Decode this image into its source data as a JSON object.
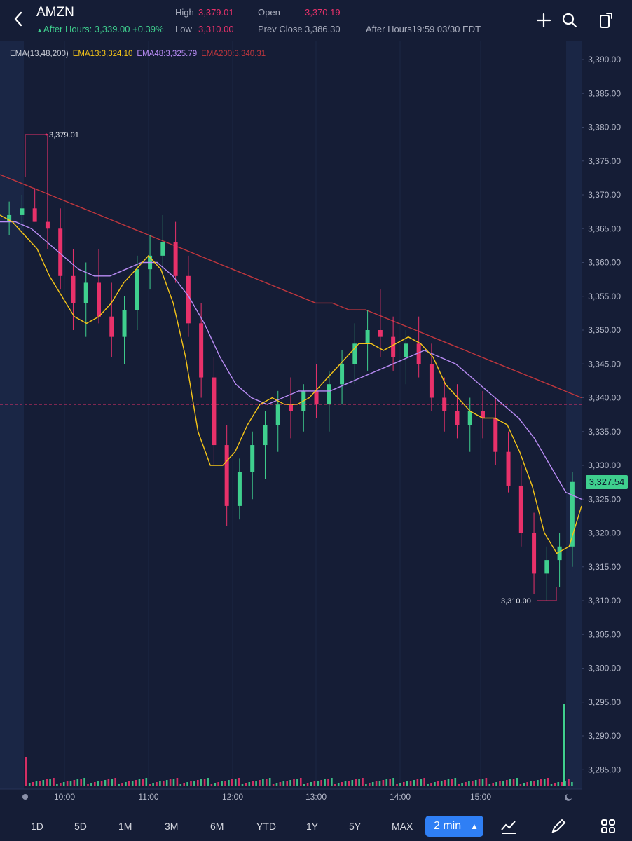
{
  "header": {
    "symbol": "AMZN",
    "after_hours": "After Hours: 3,339.00 +0.39%",
    "high_label": "High",
    "high_value": "3,379.01",
    "low_label": "Low",
    "low_value": "3,310.00",
    "open_label": "Open",
    "open_value": "3,370.19",
    "prev_close_label": "Prev Close",
    "prev_close_value": "3,386.30",
    "after_hours_time": "After Hours19:59 03/30 EDT"
  },
  "legend": {
    "name": "EMA(13,48,200)",
    "ema13": "EMA13:3,324.10",
    "ema48": "EMA48:3,325.79",
    "ema200": "EMA200:3,340.31"
  },
  "colors": {
    "background": "#151d36",
    "up": "#3fcf8e",
    "down": "#e8316a",
    "ema13": "#f5c518",
    "ema48": "#b98cf5",
    "ema200": "#c0363d",
    "accent": "#2f7ff5"
  },
  "price_tag": "3,327.54",
  "chart_data": {
    "type": "candlestick",
    "y_ticks": [
      "3,390.00",
      "3,385.00",
      "3,380.00",
      "3,375.00",
      "3,370.00",
      "3,365.00",
      "3,360.00",
      "3,355.00",
      "3,350.00",
      "3,345.00",
      "3,340.00",
      "3,335.00",
      "3,330.00",
      "3,325.00",
      "3,320.00",
      "3,315.00",
      "3,310.00",
      "3,305.00",
      "3,300.00",
      "3,295.00",
      "3,290.00",
      "3,285.00"
    ],
    "ylim": [
      3282.5,
      3392.5
    ],
    "x_ticks": [
      "10:00",
      "11:00",
      "12:00",
      "13:00",
      "14:00",
      "15:00"
    ],
    "high_annotation": "3,379.01",
    "low_annotation": "3,310.00",
    "after_hours_price": 3339.0,
    "last_price": 3327.54,
    "ema13": [
      3367,
      3366,
      3364,
      3362,
      3358,
      3355,
      3352,
      3351,
      3352,
      3354,
      3357,
      3359,
      3361,
      3359,
      3354,
      3346,
      3335,
      3330,
      3330,
      3332,
      3336,
      3339,
      3340,
      3339,
      3339,
      3340,
      3342,
      3344,
      3346,
      3348,
      3348,
      3347,
      3348,
      3349,
      3348,
      3346,
      3342,
      3340,
      3338,
      3337,
      3337,
      3336,
      3332,
      3327,
      3320,
      3317,
      3318,
      3324
    ],
    "ema48": [
      3366,
      3366,
      3365,
      3363,
      3361,
      3359,
      3358,
      3358,
      3359,
      3360,
      3360,
      3358,
      3355,
      3351,
      3346,
      3342,
      3340,
      3339,
      3340,
      3341,
      3341,
      3341,
      3342,
      3343,
      3344,
      3345,
      3346,
      3347,
      3346,
      3345,
      3343,
      3341,
      3339,
      3337,
      3334,
      3330,
      3326,
      3325
    ],
    "ema200": [
      3373,
      3372,
      3371,
      3370,
      3369,
      3368,
      3367,
      3366,
      3365,
      3364,
      3363,
      3362,
      3361,
      3360,
      3359,
      3358,
      3357,
      3356,
      3355,
      3354,
      3354,
      3353,
      3353,
      3352,
      3351,
      3350,
      3349,
      3348,
      3347,
      3346,
      3345,
      3344,
      3343,
      3342,
      3341,
      3340
    ],
    "candles": [
      [
        3366,
        3369,
        3364,
        3367
      ],
      [
        3367,
        3370,
        3365,
        3368
      ],
      [
        3368,
        3371,
        3366,
        3366
      ],
      [
        3366,
        3379.01,
        3362,
        3365
      ],
      [
        3365,
        3368,
        3356,
        3358
      ],
      [
        3358,
        3362,
        3350,
        3354
      ],
      [
        3354,
        3360,
        3349,
        3357
      ],
      [
        3357,
        3362,
        3351,
        3352
      ],
      [
        3352,
        3357,
        3346,
        3349
      ],
      [
        3349,
        3355,
        3345,
        3353
      ],
      [
        3353,
        3361,
        3350,
        3359
      ],
      [
        3359,
        3364,
        3356,
        3361
      ],
      [
        3361,
        3367,
        3358,
        3363
      ],
      [
        3363,
        3366,
        3357,
        3358
      ],
      [
        3358,
        3361,
        3349,
        3351
      ],
      [
        3351,
        3354,
        3340,
        3343
      ],
      [
        3343,
        3346,
        3330,
        3333
      ],
      [
        3333,
        3336,
        3321,
        3324
      ],
      [
        3324,
        3331,
        3322,
        3329
      ],
      [
        3329,
        3335,
        3325,
        3333
      ],
      [
        3333,
        3338,
        3328,
        3336
      ],
      [
        3336,
        3341,
        3332,
        3339
      ],
      [
        3339,
        3343,
        3334,
        3338
      ],
      [
        3338,
        3342,
        3335,
        3341
      ],
      [
        3341,
        3345,
        3337,
        3339
      ],
      [
        3339,
        3344,
        3335,
        3342
      ],
      [
        3342,
        3347,
        3339,
        3345
      ],
      [
        3345,
        3351,
        3342,
        3348
      ],
      [
        3348,
        3353,
        3344,
        3350
      ],
      [
        3350,
        3356,
        3346,
        3349
      ],
      [
        3349,
        3352,
        3344,
        3346
      ],
      [
        3346,
        3350,
        3342,
        3348
      ],
      [
        3348,
        3352,
        3343,
        3345
      ],
      [
        3345,
        3348,
        3338,
        3340
      ],
      [
        3340,
        3343,
        3335,
        3338
      ],
      [
        3338,
        3342,
        3334,
        3336
      ],
      [
        3336,
        3340,
        3332,
        3338
      ],
      [
        3338,
        3341,
        3334,
        3337
      ],
      [
        3337,
        3340,
        3330,
        3332
      ],
      [
        3332,
        3335,
        3326,
        3327
      ],
      [
        3327,
        3330,
        3318,
        3320
      ],
      [
        3320,
        3323,
        3311,
        3314
      ],
      [
        3314,
        3318,
        3310,
        3316
      ],
      [
        3316,
        3320,
        3312,
        3318
      ],
      [
        3318,
        3329,
        3315,
        3327.54
      ]
    ]
  },
  "footer": {
    "periods": [
      "1D",
      "5D",
      "1M",
      "3M",
      "6M",
      "YTD",
      "1Y",
      "5Y",
      "MAX"
    ],
    "interval": "2 min"
  }
}
